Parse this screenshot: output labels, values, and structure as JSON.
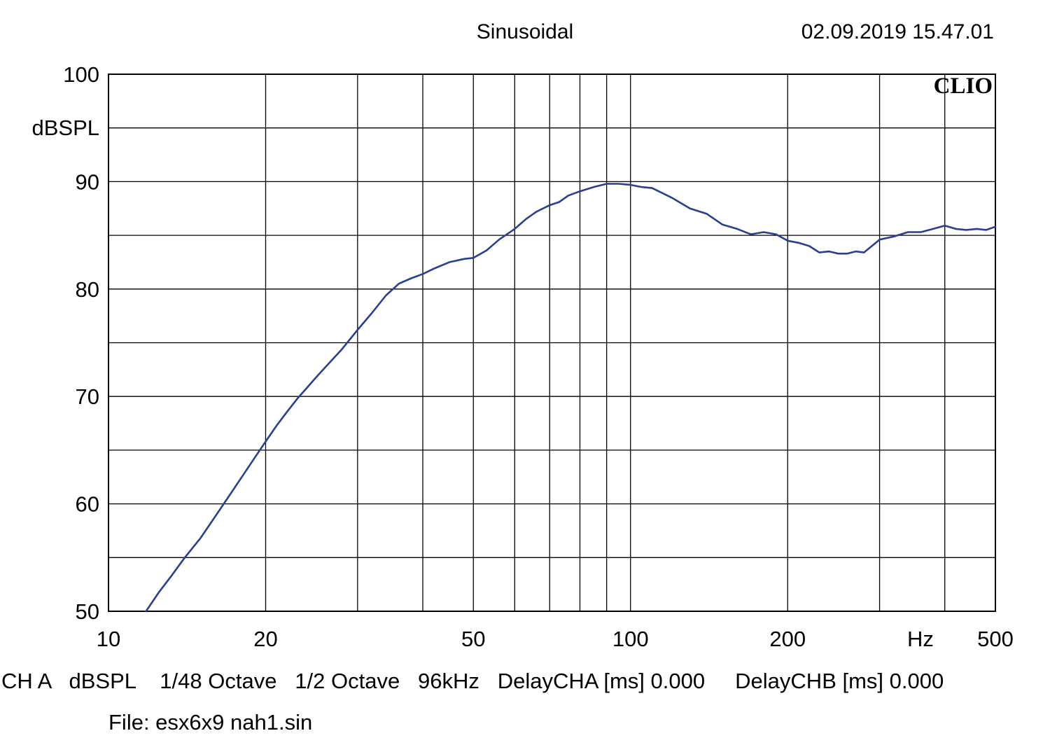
{
  "header": {
    "mode": "Sinusoidal",
    "timestamp": "02.09.2019 15.47.01"
  },
  "brand": "CLIO",
  "footer": {
    "line1": "CH A   dBSPL    1/48 Octave   1/2 Octave   96kHz   DelayCHA [ms] 0.000     DelayCHB [ms] 0.000",
    "line2": "File: esx6x9 nah1.sin"
  },
  "colors": {
    "trace": "#2a3f8f",
    "grid": "#000000",
    "background": "#ffffff"
  },
  "chart_data": {
    "type": "line",
    "title": "",
    "xlabel": "Hz",
    "ylabel": "dBSPL",
    "x_scale": "log",
    "xlim": [
      10,
      500
    ],
    "ylim": [
      50,
      100
    ],
    "x_tick_labels": [
      "10",
      "20",
      "50",
      "100",
      "200",
      "500"
    ],
    "x_tick_values": [
      10,
      20,
      50,
      100,
      200,
      500
    ],
    "x_grid_values": [
      20,
      30,
      40,
      50,
      60,
      70,
      80,
      90,
      100,
      200,
      300,
      400
    ],
    "y_tick_labels": [
      "100",
      "90",
      "80",
      "70",
      "60",
      "50"
    ],
    "y_tick_values": [
      100,
      90,
      80,
      70,
      60,
      50
    ],
    "y_grid_values": [
      55,
      60,
      65,
      70,
      75,
      80,
      85,
      90,
      95
    ],
    "grid": true,
    "series": [
      {
        "x": [
          11.8,
          12.5,
          13.2,
          14,
          15,
          16,
          17,
          18,
          19,
          20,
          21,
          22,
          23,
          24,
          25,
          26,
          28,
          30,
          32,
          34,
          36,
          38,
          40,
          42,
          45,
          48,
          50,
          53,
          56,
          60,
          63,
          66,
          70,
          73,
          76,
          80,
          85,
          90,
          95,
          100,
          105,
          110,
          120,
          130,
          140,
          150,
          160,
          170,
          180,
          190,
          200,
          210,
          220,
          230,
          240,
          250,
          260,
          270,
          280,
          300,
          320,
          340,
          360,
          380,
          400,
          420,
          440,
          460,
          480,
          500
        ],
        "y": [
          50,
          51.8,
          53.3,
          55,
          56.8,
          58.8,
          60.7,
          62.5,
          64.2,
          65.8,
          67.3,
          68.6,
          69.8,
          70.8,
          71.8,
          72.7,
          74.4,
          76.2,
          77.8,
          79.4,
          80.5,
          81.0,
          81.4,
          81.9,
          82.5,
          82.8,
          82.9,
          83.6,
          84.6,
          85.6,
          86.5,
          87.2,
          87.8,
          88.1,
          88.7,
          89.1,
          89.5,
          89.8,
          89.8,
          89.7,
          89.5,
          89.4,
          88.5,
          87.5,
          87.0,
          86.0,
          85.6,
          85.1,
          85.3,
          85.1,
          84.5,
          84.3,
          84.0,
          83.4,
          83.5,
          83.3,
          83.3,
          83.5,
          83.4,
          84.6,
          84.9,
          85.3,
          85.3,
          85.6,
          85.9,
          85.6,
          85.5,
          85.6,
          85.5,
          85.8
        ]
      }
    ]
  }
}
